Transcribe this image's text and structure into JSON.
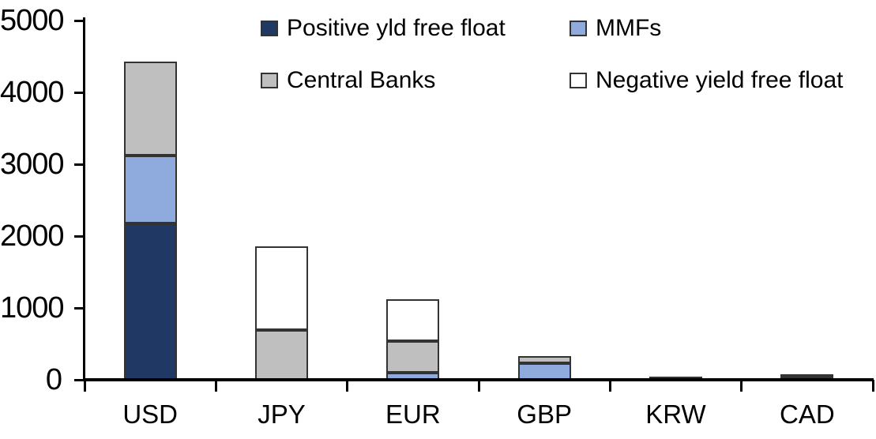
{
  "chart_data": {
    "type": "bar",
    "stacked": true,
    "title": "",
    "xlabel": "",
    "ylabel": "",
    "categories": [
      "USD",
      "JPY",
      "EUR",
      "GBP",
      "KRW",
      "CAD"
    ],
    "series": [
      {
        "name": "Positive yld free float",
        "color": "#1F3864",
        "values": [
          2175,
          0,
          0,
          0,
          45,
          45
        ]
      },
      {
        "name": "MMFs",
        "color": "#8FAADC",
        "values": [
          945,
          0,
          100,
          230,
          0,
          0
        ]
      },
      {
        "name": "Central Banks",
        "color": "#BFBFBF",
        "values": [
          1310,
          690,
          440,
          100,
          0,
          30
        ]
      },
      {
        "name": "Negative yield free float",
        "color": "#FFFFFF",
        "values": [
          0,
          1170,
          580,
          0,
          0,
          0
        ]
      }
    ],
    "ylim": [
      0,
      5000
    ],
    "ytick_step": 1000,
    "ytick_labels": [
      "0",
      "1000",
      "2000",
      "3000",
      "4000",
      "5000"
    ],
    "grid": false,
    "legend_position": "top",
    "axis_color": "#000000"
  }
}
